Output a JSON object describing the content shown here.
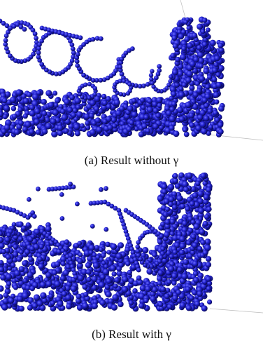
{
  "figures": [
    {
      "caption": "(a) Result without γ"
    },
    {
      "caption": "(b) Result with γ"
    }
  ]
}
